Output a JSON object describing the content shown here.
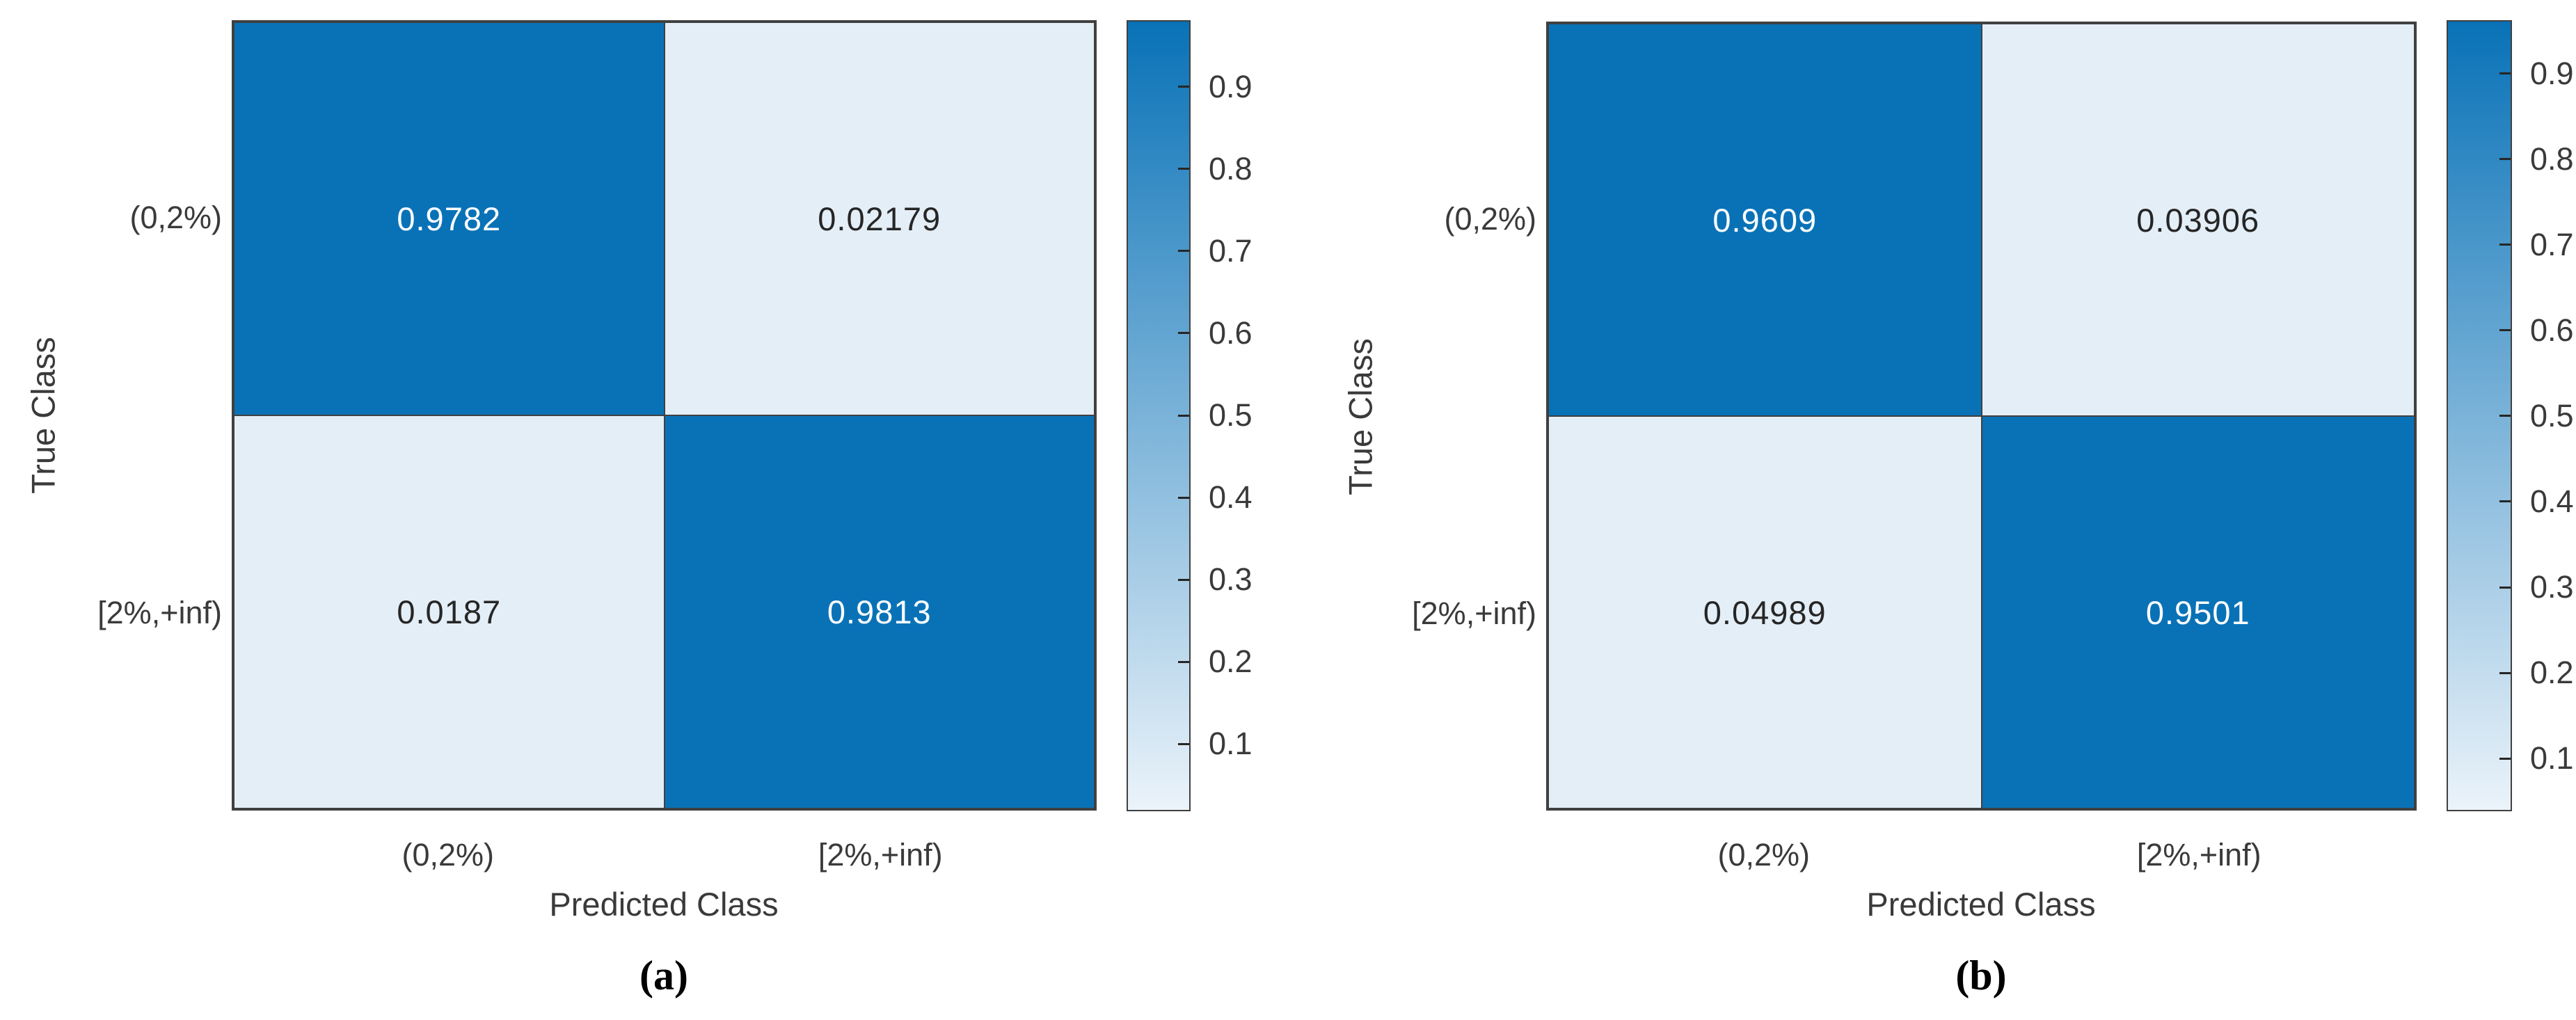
{
  "figure": {
    "background": "#ffffff",
    "colors": {
      "dark_cell": "#0972b7",
      "light_cell": "#e4eef7",
      "grid_border": "#404040",
      "axis_text": "#3a3a3a",
      "value_text_on_dark": "#ffffff",
      "value_text_on_light": "#262626",
      "colorbar_top": "#0972b7",
      "colorbar_bottom": "#ebf3fa"
    }
  },
  "chart_data": [
    {
      "type": "heatmap",
      "caption": "(a)",
      "xlabel": "Predicted Class",
      "ylabel": "True Class",
      "x_categories": [
        "(0,2%)",
        "[2%,+inf)"
      ],
      "y_categories": [
        "(0,2%)",
        "[2%,+inf)"
      ],
      "matrix": [
        [
          0.9782,
          0.02179
        ],
        [
          0.0187,
          0.9813
        ]
      ],
      "cell_labels": [
        [
          "0.9782",
          "0.02179"
        ],
        [
          "0.0187",
          "0.9813"
        ]
      ],
      "colorbar": {
        "tick_labels": [
          "0.9",
          "0.8",
          "0.7",
          "0.6",
          "0.5",
          "0.4",
          "0.3",
          "0.2",
          "0.1"
        ],
        "tick_values": [
          0.9,
          0.8,
          0.7,
          0.6,
          0.5,
          0.4,
          0.3,
          0.2,
          0.1
        ],
        "range": [
          0.0187,
          0.9813
        ],
        "legend_position": "right"
      },
      "grid": false
    },
    {
      "type": "heatmap",
      "caption": "(b)",
      "xlabel": "Predicted Class",
      "ylabel": "True Class",
      "x_categories": [
        "(0,2%)",
        "[2%,+inf)"
      ],
      "y_categories": [
        "(0,2%)",
        "[2%,+inf)"
      ],
      "matrix": [
        [
          0.9609,
          0.03906
        ],
        [
          0.04989,
          0.9501
        ]
      ],
      "cell_labels": [
        [
          "0.9609",
          "0.03906"
        ],
        [
          "0.04989",
          "0.9501"
        ]
      ],
      "colorbar": {
        "tick_labels": [
          "0.9",
          "0.8",
          "0.7",
          "0.6",
          "0.5",
          "0.4",
          "0.3",
          "0.2",
          "0.1"
        ],
        "tick_values": [
          0.9,
          0.8,
          0.7,
          0.6,
          0.5,
          0.4,
          0.3,
          0.2,
          0.1
        ],
        "range": [
          0.03906,
          0.9609
        ],
        "legend_position": "right"
      },
      "grid": false
    }
  ]
}
